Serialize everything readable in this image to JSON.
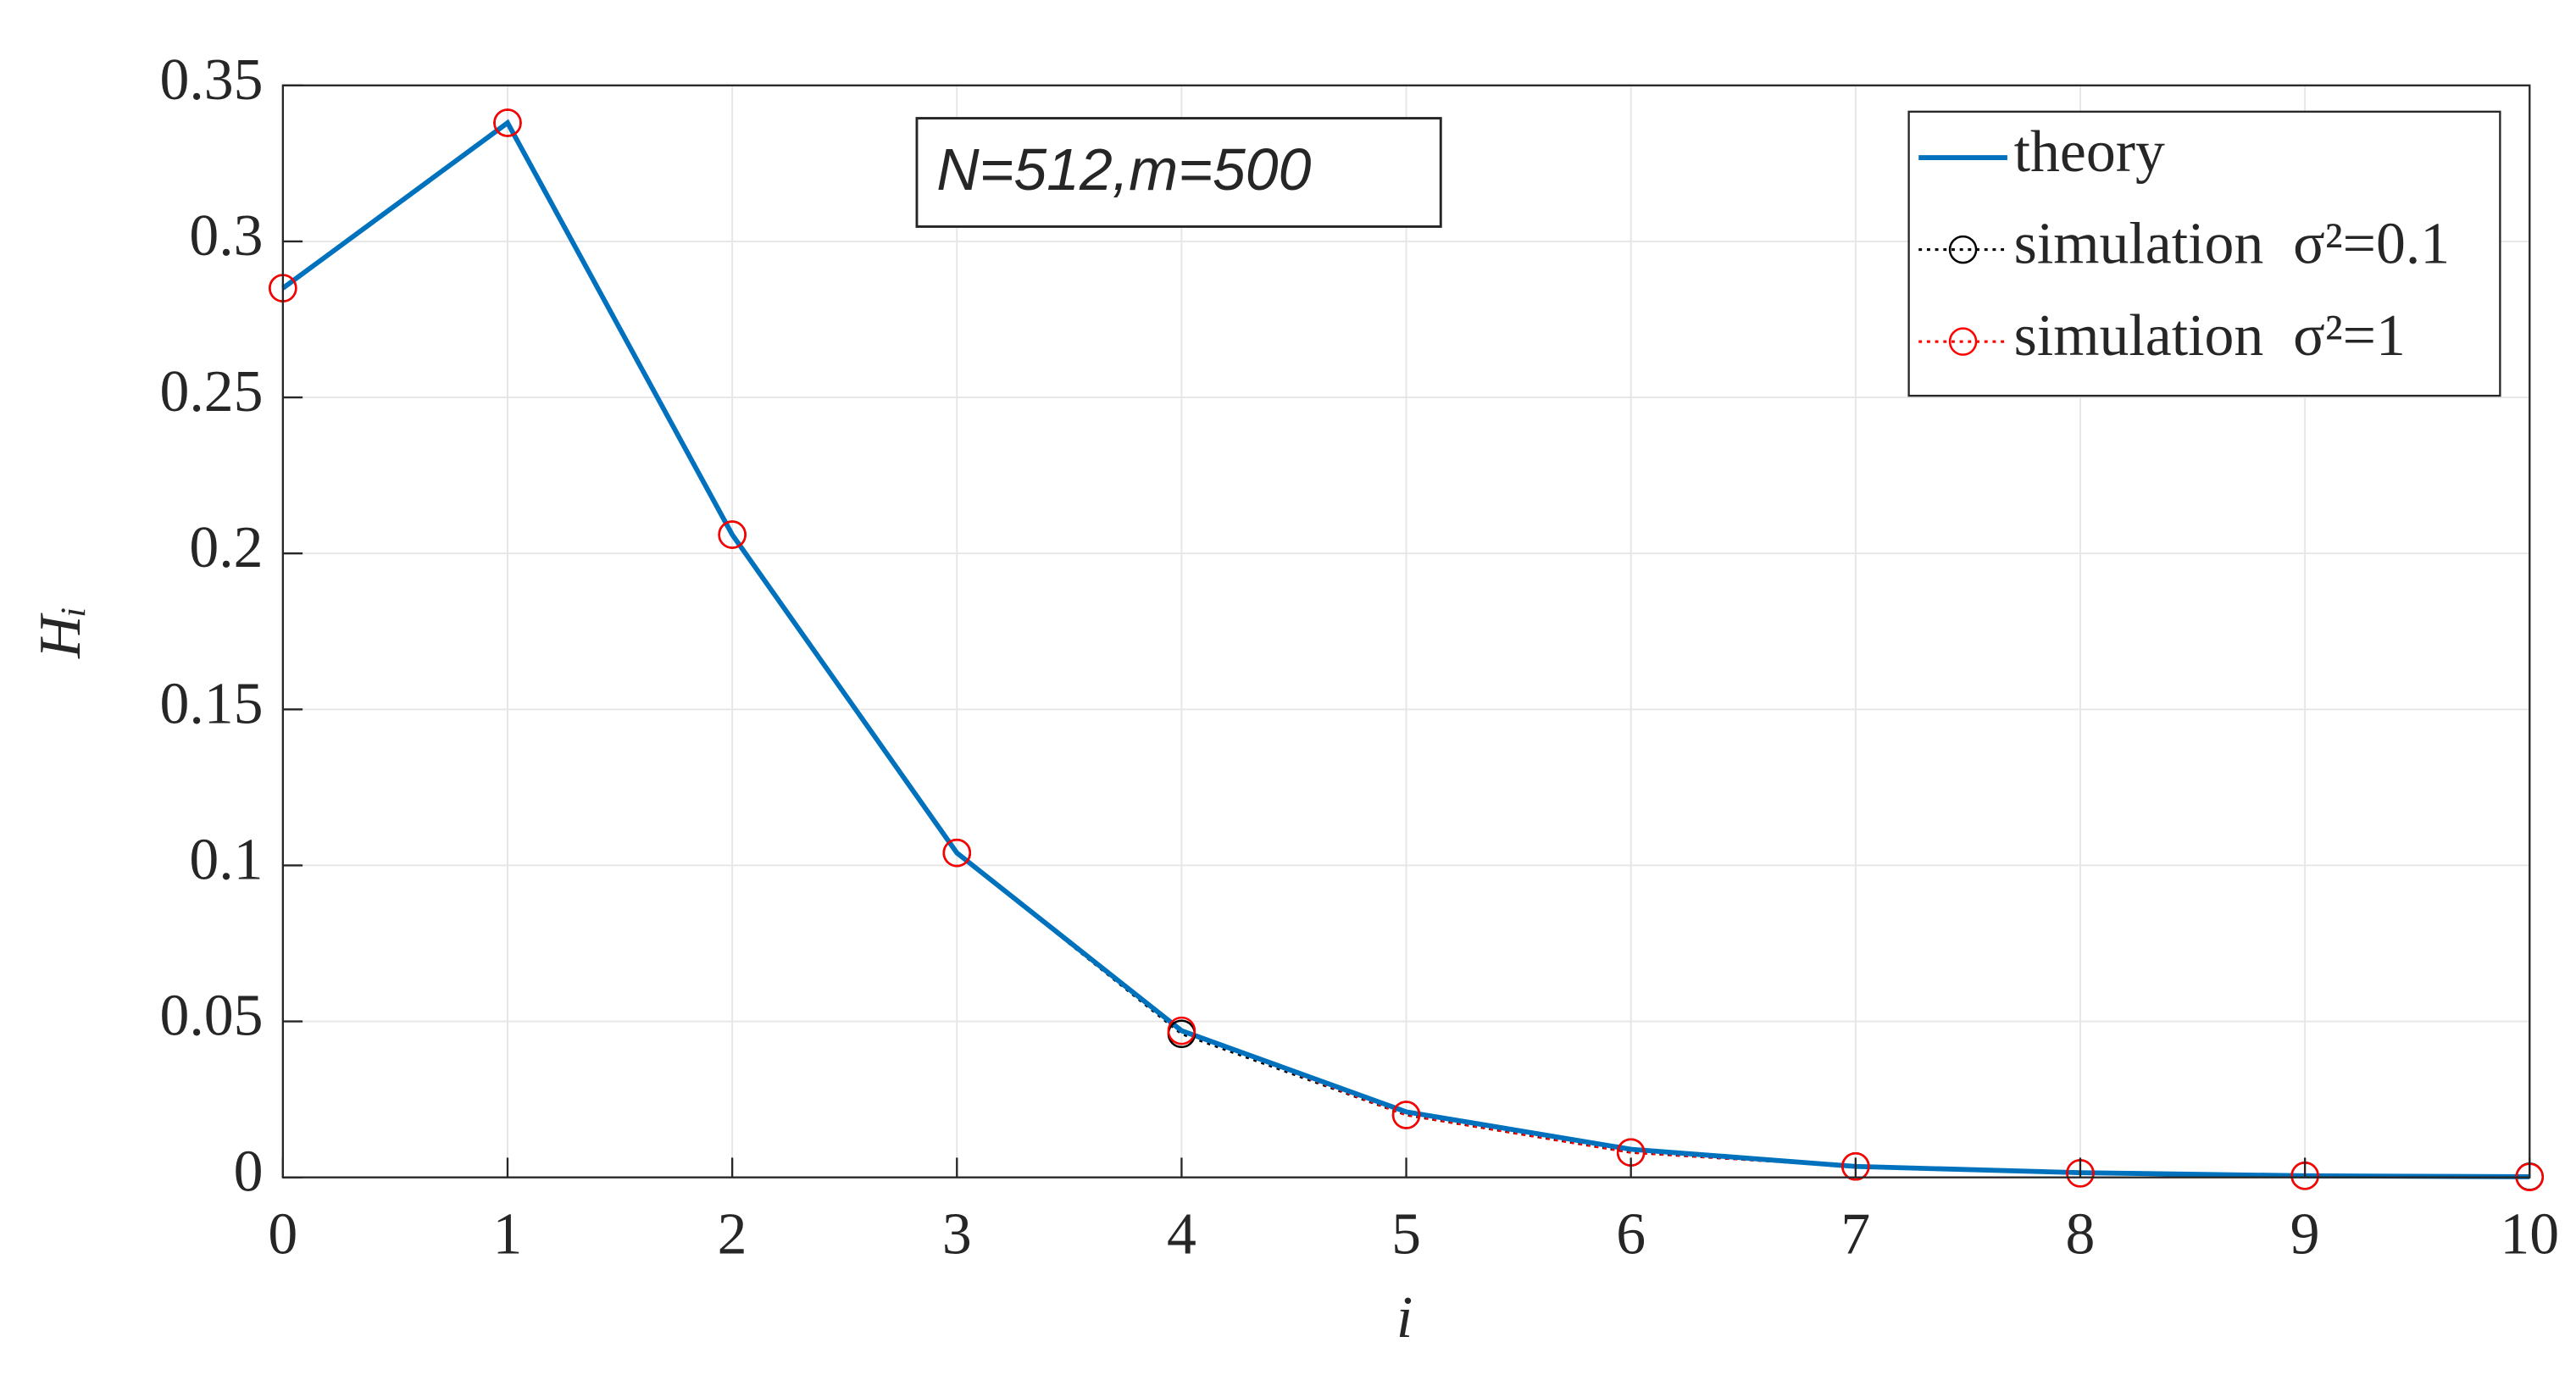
{
  "chart_data": {
    "type": "line",
    "annotation": "N=512,m=500",
    "xlabel": "i",
    "ylabel": "Hᵢ",
    "x": [
      0,
      1,
      2,
      3,
      4,
      5,
      6,
      7,
      8,
      9,
      10
    ],
    "series": [
      {
        "name": "theory",
        "color": "#0072bd",
        "style": "solid",
        "marker": "none",
        "values": [
          0.285,
          0.338,
          0.206,
          0.104,
          0.047,
          0.021,
          0.009,
          0.0035,
          0.0015,
          0.0005,
          0.0002
        ]
      },
      {
        "name": "simulation  σ²=0.1",
        "color": "#000000",
        "style": "dotted",
        "marker": "circle",
        "values": [
          0.285,
          0.338,
          0.206,
          0.104,
          0.046,
          0.02,
          0.008,
          0.0035,
          0.0013,
          0.0005,
          0.0002
        ]
      },
      {
        "name": "simulation  σ²=1",
        "color": "#ff0000",
        "style": "dotted",
        "marker": "circle",
        "values": [
          0.285,
          0.338,
          0.206,
          0.104,
          0.047,
          0.02,
          0.008,
          0.0035,
          0.0013,
          0.0005,
          0.0001
        ]
      }
    ],
    "xlim": [
      0,
      10
    ],
    "xticks": [
      0,
      1,
      2,
      3,
      4,
      5,
      6,
      7,
      8,
      9,
      10
    ],
    "ylim": [
      0,
      0.35
    ],
    "yticks": [
      0,
      0.05,
      0.1,
      0.15,
      0.2,
      0.25,
      0.3,
      0.35
    ],
    "grid": true,
    "legend": "northeast"
  }
}
